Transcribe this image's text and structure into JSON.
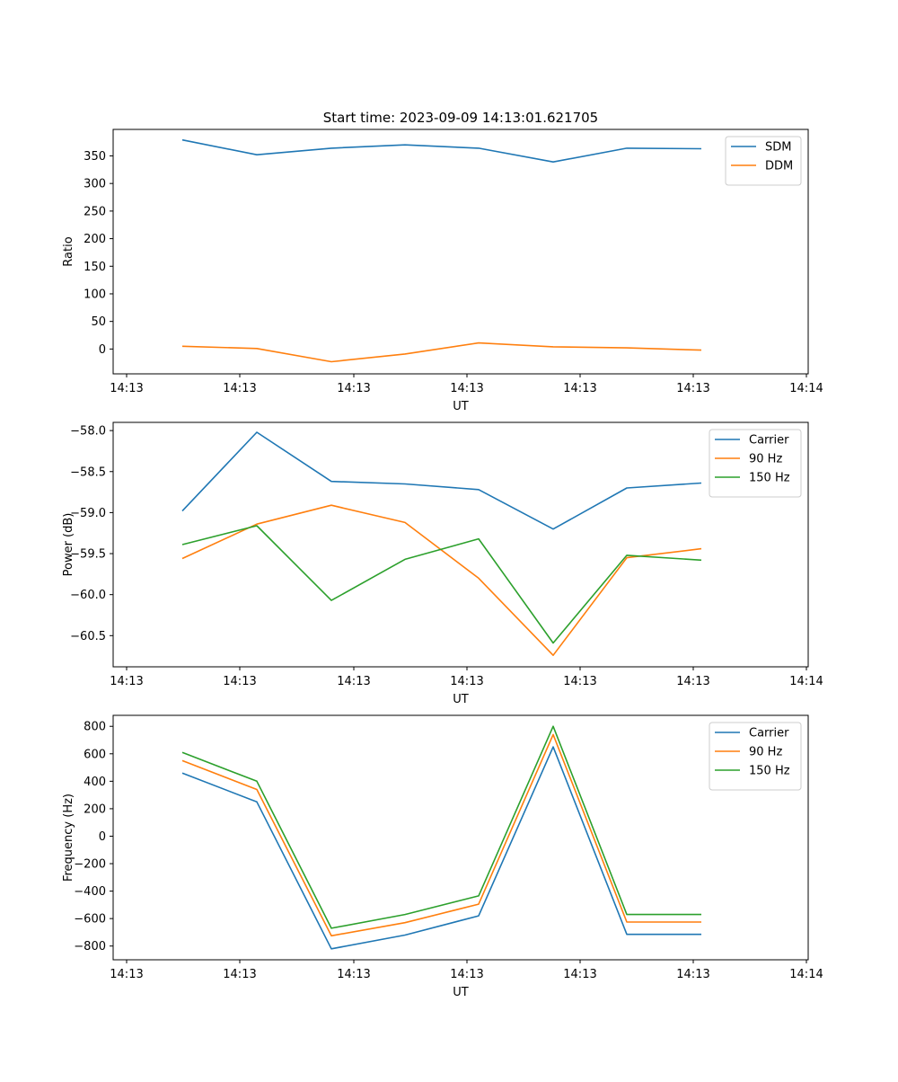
{
  "figure_title": "Start time: 2023-09-09 14:13:01.621705",
  "chart_data": [
    {
      "type": "line",
      "title": "Start time: 2023-09-09 14:13:01.621705",
      "xlabel": "UT",
      "ylabel": "Ratio",
      "x_tick_labels": [
        "14:13",
        "14:13",
        "14:13",
        "14:13",
        "14:13",
        "14:13",
        "14:14"
      ],
      "y_ticks": [
        0,
        50,
        100,
        150,
        200,
        250,
        300,
        350
      ],
      "ylim": [
        -45,
        398
      ],
      "legend_position": "top-right",
      "series": [
        {
          "name": "SDM",
          "color": "#1f77b4",
          "values": [
            379,
            352,
            364,
            370,
            364,
            339,
            364,
            363
          ]
        },
        {
          "name": "DDM",
          "color": "#ff7f0e",
          "values": [
            5,
            1,
            -23,
            -9,
            11,
            4,
            2,
            -2
          ]
        }
      ]
    },
    {
      "type": "line",
      "xlabel": "UT",
      "ylabel": "Power (dB)",
      "x_tick_labels": [
        "14:13",
        "14:13",
        "14:13",
        "14:13",
        "14:13",
        "14:13",
        "14:14"
      ],
      "y_ticks": [
        -58.0,
        -58.5,
        -59.0,
        -59.5,
        -60.0,
        -60.5
      ],
      "y_tick_labels": [
        "−58.0",
        "−58.5",
        "−59.0",
        "−59.5",
        "−60.0",
        "−60.5"
      ],
      "ylim": [
        -60.88,
        -57.9
      ],
      "legend_position": "top-right",
      "series": [
        {
          "name": "Carrier",
          "color": "#1f77b4",
          "values": [
            -58.98,
            -58.02,
            -58.62,
            -58.65,
            -58.72,
            -59.2,
            -58.7,
            -58.64
          ]
        },
        {
          "name": "90 Hz",
          "color": "#ff7f0e",
          "values": [
            -59.56,
            -59.14,
            -58.91,
            -59.12,
            -59.8,
            -60.74,
            -59.55,
            -59.44
          ]
        },
        {
          "name": "150 Hz",
          "color": "#2ca02c",
          "values": [
            -59.39,
            -59.16,
            -60.07,
            -59.57,
            -59.32,
            -60.59,
            -59.52,
            -59.58
          ]
        }
      ]
    },
    {
      "type": "line",
      "xlabel": "UT",
      "ylabel": "Frequency (Hz)",
      "x_tick_labels": [
        "14:13",
        "14:13",
        "14:13",
        "14:13",
        "14:13",
        "14:13",
        "14:14"
      ],
      "y_ticks": [
        -800,
        -600,
        -400,
        -200,
        0,
        200,
        400,
        600,
        800
      ],
      "y_tick_labels": [
        "−800",
        "−600",
        "−400",
        "−200",
        "0",
        "200",
        "400",
        "600",
        "800"
      ],
      "ylim": [
        -900,
        880
      ],
      "legend_position": "top-right",
      "series": [
        {
          "name": "Carrier",
          "color": "#1f77b4",
          "values": [
            460,
            250,
            -820,
            -720,
            -580,
            650,
            -715,
            -715
          ]
        },
        {
          "name": "90 Hz",
          "color": "#ff7f0e",
          "values": [
            550,
            340,
            -725,
            -630,
            -495,
            740,
            -625,
            -625
          ]
        },
        {
          "name": "150 Hz",
          "color": "#2ca02c",
          "values": [
            610,
            400,
            -670,
            -570,
            -435,
            800,
            -570,
            -570
          ]
        }
      ]
    }
  ]
}
